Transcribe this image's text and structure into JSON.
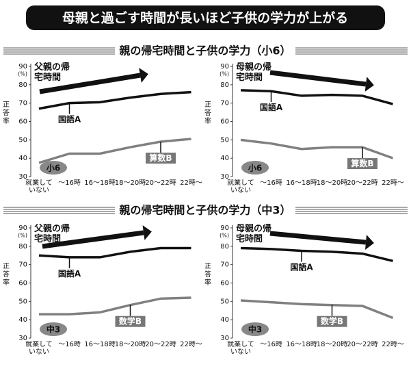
{
  "title": "母親と過ごす時間が長いほど子供の学力が上がる",
  "sections": [
    "親の帰宅時間と子供の学力（小6）",
    "親の帰宅時間と子供の学力（中3）"
  ],
  "chart_data": [
    {
      "type": "line",
      "annotation": "父親の帰宅時間",
      "badge": "小6",
      "ylabel": "正答率",
      "y_unit": "(%)",
      "categories": [
        "就業していない",
        "〜16時",
        "16〜18時",
        "18〜20時",
        "20〜22時",
        "22時〜"
      ],
      "ylim": [
        30,
        90
      ],
      "yticks": [
        30,
        40,
        50,
        60,
        70,
        80,
        90
      ],
      "series": [
        {
          "name": "国語A",
          "color": "#111111",
          "values": [
            67,
            70,
            70.5,
            73,
            75,
            76
          ]
        },
        {
          "name": "算数B",
          "color": "#808080",
          "values": [
            37.5,
            42.5,
            42.5,
            46,
            49,
            50.5
          ]
        }
      ]
    },
    {
      "type": "line",
      "annotation": "母親の帰宅時間",
      "badge": "小6",
      "ylabel": "正答率",
      "y_unit": "(%)",
      "categories": [
        "就業していない",
        "〜16時",
        "16〜18時",
        "18〜20時",
        "20〜22時",
        "22時〜"
      ],
      "ylim": [
        30,
        90
      ],
      "yticks": [
        30,
        40,
        50,
        60,
        70,
        80,
        90
      ],
      "series": [
        {
          "name": "国語A",
          "color": "#111111",
          "values": [
            77,
            76.5,
            74,
            74.5,
            74,
            69.5
          ]
        },
        {
          "name": "算数B",
          "color": "#808080",
          "values": [
            50,
            48,
            45,
            46,
            46,
            40
          ]
        }
      ]
    },
    {
      "type": "line",
      "annotation": "父親の帰宅時間",
      "badge": "中3",
      "ylabel": "正答率",
      "y_unit": "(%)",
      "categories": [
        "就業していない",
        "〜16時",
        "16〜18時",
        "18〜20時",
        "20〜22時",
        "22時〜"
      ],
      "ylim": [
        30,
        90
      ],
      "yticks": [
        30,
        40,
        50,
        60,
        70,
        80,
        90
      ],
      "series": [
        {
          "name": "国語A",
          "color": "#111111",
          "values": [
            75,
            74,
            74,
            77,
            79,
            79
          ]
        },
        {
          "name": "数学B",
          "color": "#808080",
          "values": [
            43,
            43,
            44,
            48,
            51.5,
            52
          ]
        }
      ]
    },
    {
      "type": "line",
      "annotation": "母親の帰宅時間",
      "badge": "中3",
      "ylabel": "正答率",
      "y_unit": "(%)",
      "categories": [
        "就業していない",
        "〜16時",
        "16〜18時",
        "18〜20時",
        "20〜22時",
        "22時〜"
      ],
      "ylim": [
        30,
        90
      ],
      "yticks": [
        30,
        40,
        50,
        60,
        70,
        80,
        90
      ],
      "series": [
        {
          "name": "国語A",
          "color": "#111111",
          "values": [
            79,
            78.5,
            77.5,
            77,
            76,
            72
          ]
        },
        {
          "name": "数学B",
          "color": "#808080",
          "values": [
            50.5,
            49.5,
            48.5,
            48,
            47.5,
            41
          ]
        }
      ]
    }
  ]
}
